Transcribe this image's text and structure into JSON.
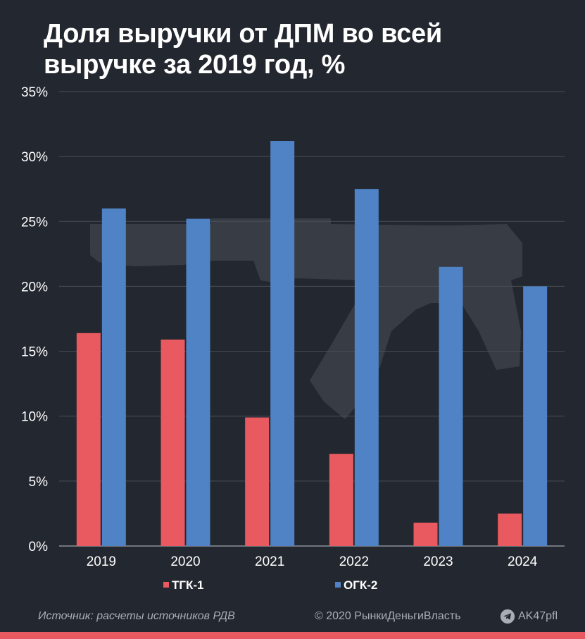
{
  "title": "Доля выручки от ДПМ во всей выручке за 2019 год, %",
  "colors": {
    "background": "#23272f",
    "series_1": "#e85a5f",
    "series_2": "#4f83c6",
    "grid": "#4a4f58",
    "watermark": "#3b3f47",
    "accent_bar": "#e85a5f"
  },
  "footer": {
    "source": "Источник: расчеты источников РДВ",
    "copyright": "© 2020  РынкиДеньгиВласть",
    "telegram": "AK47pfl",
    "telegram_icon": "telegram-icon"
  },
  "chart_data": {
    "type": "bar",
    "title": "Доля выручки от ДПМ во всей выручке за 2019 год, %",
    "xlabel": "",
    "ylabel": "",
    "categories": [
      "2019",
      "2020",
      "2021",
      "2022",
      "2023",
      "2024"
    ],
    "series": [
      {
        "name": "ТГК-1",
        "values": [
          16.4,
          15.9,
          9.9,
          7.1,
          1.8,
          2.5
        ]
      },
      {
        "name": "ОГК-2",
        "values": [
          26.0,
          25.2,
          31.2,
          27.5,
          21.5,
          20.0
        ]
      }
    ],
    "ylim": [
      0,
      35
    ],
    "yticks": [
      0,
      5,
      10,
      15,
      20,
      25,
      30,
      35
    ],
    "ytick_labels": [
      "0%",
      "5%",
      "10%",
      "15%",
      "20%",
      "25%",
      "30%",
      "35%"
    ],
    "grid": true,
    "legend": "bottom-center",
    "watermark_icon": "rifle-silhouette-icon"
  }
}
